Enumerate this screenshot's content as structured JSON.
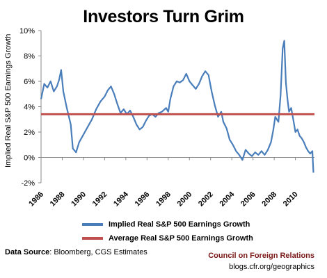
{
  "chart_data": {
    "type": "line",
    "title": "Investors Turn Grim",
    "ylabel": "Implied Real S&P 500 Earnings Growth",
    "xlabel": "",
    "xlim": [
      1986,
      2011.8
    ],
    "ylim": [
      -2,
      10
    ],
    "y_ticks": [
      "-2%",
      "0%",
      "2%",
      "4%",
      "6%",
      "8%",
      "10%"
    ],
    "x_ticks": [
      "1986",
      "1988",
      "1990",
      "1992",
      "1994",
      "1996",
      "1998",
      "2000",
      "2002",
      "2004",
      "2006",
      "2008",
      "2010"
    ],
    "grid": false,
    "legend_position": "bottom",
    "series": [
      {
        "name": "Implied Real S&P 500 Earnings Growth",
        "color": "#4a7ebb",
        "x": [
          1986.0,
          1986.3,
          1986.6,
          1986.9,
          1987.2,
          1987.5,
          1987.7,
          1987.9,
          1988.1,
          1988.4,
          1988.6,
          1988.8,
          1989.0,
          1989.3,
          1989.6,
          1990.0,
          1990.4,
          1990.8,
          1991.2,
          1991.6,
          1992.0,
          1992.3,
          1992.6,
          1992.9,
          1993.2,
          1993.5,
          1993.8,
          1994.1,
          1994.4,
          1994.7,
          1995.0,
          1995.3,
          1995.6,
          1995.9,
          1996.2,
          1996.5,
          1996.8,
          1997.1,
          1997.4,
          1997.8,
          1998.0,
          1998.2,
          1998.5,
          1998.8,
          1999.1,
          1999.4,
          1999.7,
          2000.0,
          2000.3,
          2000.6,
          2000.9,
          2001.2,
          2001.5,
          2001.8,
          2002.1,
          2002.4,
          2002.7,
          2003.0,
          2003.2,
          2003.5,
          2003.8,
          2004.1,
          2004.4,
          2004.7,
          2005.0,
          2005.3,
          2005.6,
          2005.9,
          2006.2,
          2006.5,
          2006.8,
          2007.1,
          2007.4,
          2007.7,
          2007.9,
          2008.1,
          2008.4,
          2008.6,
          2008.8,
          2008.95,
          2009.1,
          2009.25,
          2009.4,
          2009.6,
          2009.8,
          2010.0,
          2010.2,
          2010.4,
          2010.6,
          2010.8,
          2011.0,
          2011.2,
          2011.4,
          2011.6,
          2011.7
        ],
        "y": [
          4.6,
          5.8,
          5.5,
          6.0,
          5.2,
          5.6,
          6.1,
          6.9,
          5.2,
          4.0,
          3.3,
          2.6,
          0.7,
          0.4,
          1.2,
          1.8,
          2.4,
          3.0,
          3.8,
          4.4,
          4.8,
          5.3,
          5.6,
          5.0,
          4.2,
          3.5,
          3.8,
          3.4,
          3.7,
          3.2,
          2.6,
          2.2,
          2.4,
          2.9,
          3.3,
          3.4,
          3.2,
          3.5,
          3.6,
          3.9,
          3.6,
          4.6,
          5.6,
          6.0,
          5.9,
          6.1,
          6.6,
          6.0,
          5.7,
          5.4,
          5.8,
          6.4,
          6.8,
          6.5,
          5.2,
          4.1,
          3.2,
          3.6,
          2.8,
          2.3,
          1.4,
          1.0,
          0.5,
          0.2,
          -0.2,
          0.6,
          0.3,
          0.1,
          0.4,
          0.2,
          0.5,
          0.2,
          0.6,
          1.2,
          2.1,
          3.2,
          2.8,
          4.9,
          8.6,
          9.2,
          5.9,
          4.6,
          3.6,
          3.9,
          3.0,
          2.0,
          2.2,
          1.7,
          1.5,
          1.2,
          0.8,
          0.5,
          0.3,
          0.5,
          -1.2
        ]
      },
      {
        "name": "Average Real S&P 500 Earnings Growth",
        "color": "#c0504d",
        "x": [
          1986.0,
          2011.8
        ],
        "y": [
          3.4,
          3.4
        ]
      }
    ]
  },
  "source_label": "Data Source",
  "source_text": ": Bloomberg, CGS Estimates",
  "org": "Council on Foreign Relations",
  "url": "blogs.cfr.org/geographics"
}
